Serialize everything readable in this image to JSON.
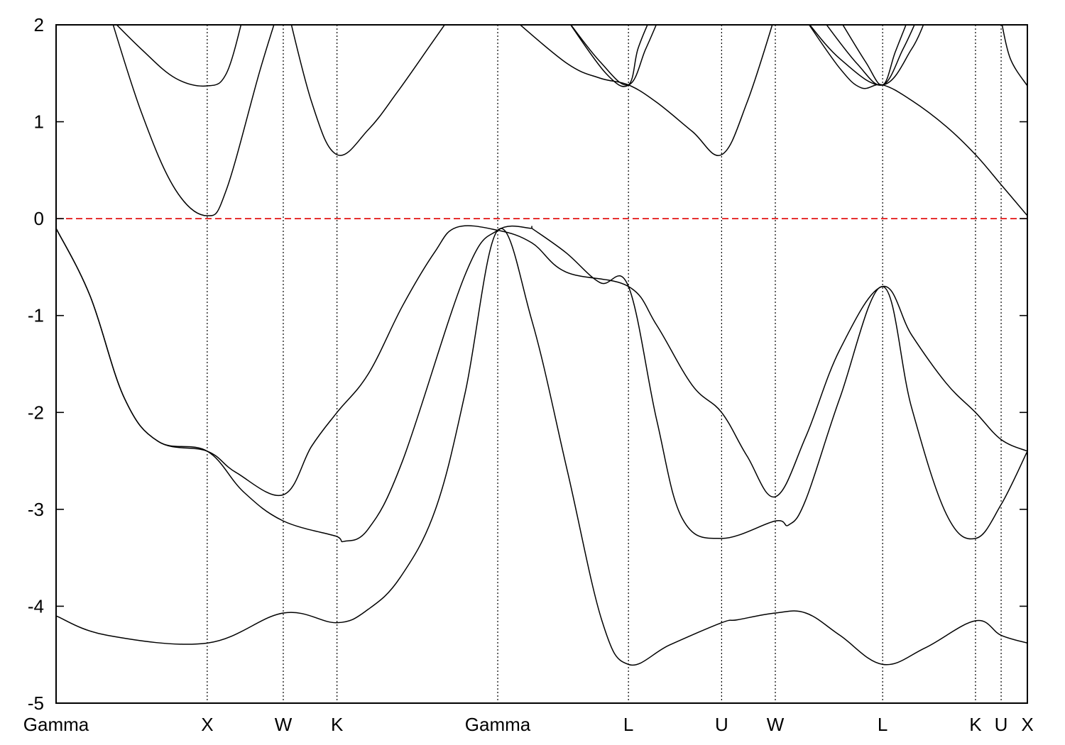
{
  "chart_data": {
    "type": "line",
    "title": "",
    "xlabel": "",
    "ylabel": "",
    "ylim": [
      -5,
      2
    ],
    "xlim": [
      0,
      1
    ],
    "grid": false,
    "y_ticks": [
      {
        "value": 2,
        "label": "2"
      },
      {
        "value": 1,
        "label": "1"
      },
      {
        "value": 0,
        "label": "0"
      },
      {
        "value": -1,
        "label": "-1"
      },
      {
        "value": -2,
        "label": "-2"
      },
      {
        "value": -3,
        "label": "-3"
      },
      {
        "value": -4,
        "label": "-4"
      },
      {
        "value": -5,
        "label": "-5"
      }
    ],
    "k_points": [
      {
        "label": "Gamma",
        "x": 0.0
      },
      {
        "label": "X",
        "x": 0.1556
      },
      {
        "label": "W",
        "x": 0.2339
      },
      {
        "label": "K",
        "x": 0.2892
      },
      {
        "label": "Gamma",
        "x": 0.4547
      },
      {
        "label": "L",
        "x": 0.5893
      },
      {
        "label": "U",
        "x": 0.6852
      },
      {
        "label": "W",
        "x": 0.7405
      },
      {
        "label": "L",
        "x": 0.851
      },
      {
        "label": "K",
        "x": 0.9466
      },
      {
        "label": "U",
        "x": 0.973
      },
      {
        "label": "X",
        "x": 1.0
      }
    ],
    "reference_line": {
      "y": 0,
      "color": "#e00000",
      "style": "dashed"
    },
    "series": [
      {
        "points": [
          [
            0.0,
            -4.1
          ],
          [
            0.0526,
            -4.3
          ],
          [
            0.1556,
            -4.38
          ],
          [
            0.2339,
            -4.07
          ],
          [
            0.2892,
            -4.17
          ],
          [
            0.3216,
            -4.03
          ],
          [
            0.3545,
            -3.7
          ],
          [
            0.3906,
            -3.0
          ],
          [
            0.4211,
            -1.8
          ],
          [
            0.4547,
            -0.12
          ],
          [
            0.4898,
            -1.05
          ],
          [
            0.5263,
            -2.6
          ],
          [
            0.562,
            -4.15
          ],
          [
            0.5893,
            -4.6
          ],
          [
            0.6316,
            -4.4
          ],
          [
            0.6852,
            -4.17
          ],
          [
            0.7017,
            -4.14
          ],
          [
            0.7405,
            -4.07
          ],
          [
            0.7719,
            -4.07
          ],
          [
            0.807,
            -4.3
          ],
          [
            0.851,
            -4.6
          ],
          [
            0.8947,
            -4.43
          ],
          [
            0.9466,
            -4.15
          ],
          [
            0.973,
            -4.3
          ],
          [
            1.0,
            -4.38
          ]
        ]
      },
      {
        "points": [
          [
            0.0,
            -0.1
          ],
          [
            0.0351,
            -0.8
          ],
          [
            0.0702,
            -1.85
          ],
          [
            0.1053,
            -2.3
          ],
          [
            0.1556,
            -2.4
          ],
          [
            0.193,
            -2.82
          ],
          [
            0.2339,
            -3.12
          ],
          [
            0.2892,
            -3.28
          ],
          [
            0.2968,
            -3.33
          ],
          [
            0.3216,
            -3.2
          ],
          [
            0.3567,
            -2.5
          ],
          [
            0.4211,
            -0.58
          ],
          [
            0.4547,
            -0.12
          ],
          [
            0.4898,
            -0.1
          ],
          [
            0.4898,
            -0.1
          ],
          [
            0.5248,
            -0.35
          ],
          [
            0.56,
            -0.66
          ],
          [
            0.5893,
            -0.7
          ],
          [
            0.6184,
            -2.08
          ],
          [
            0.645,
            -3.1
          ],
          [
            0.6852,
            -3.3
          ],
          [
            0.7405,
            -3.12
          ],
          [
            0.7544,
            -3.16
          ],
          [
            0.7719,
            -2.9
          ],
          [
            0.807,
            -1.85
          ],
          [
            0.851,
            -0.7
          ],
          [
            0.8808,
            -1.95
          ],
          [
            0.9166,
            -3.05
          ],
          [
            0.9466,
            -3.3
          ],
          [
            0.973,
            -2.95
          ],
          [
            1.0,
            -2.4
          ]
        ]
      },
      {
        "points": [
          [
            0.0,
            -0.1
          ],
          [
            0.0351,
            -0.8
          ],
          [
            0.0702,
            -1.85
          ],
          [
            0.1053,
            -2.3
          ],
          [
            0.1556,
            -2.4
          ],
          [
            0.1853,
            -2.62
          ],
          [
            0.2339,
            -2.85
          ],
          [
            0.263,
            -2.35
          ],
          [
            0.2892,
            -2.0
          ],
          [
            0.3216,
            -1.6
          ],
          [
            0.3567,
            -0.9
          ],
          [
            0.3895,
            -0.35
          ],
          [
            0.4123,
            -0.09
          ],
          [
            0.4547,
            -0.12
          ],
          [
            0.4898,
            -0.25
          ],
          [
            0.5248,
            -0.55
          ],
          [
            0.5893,
            -0.7
          ],
          [
            0.6184,
            -1.1
          ],
          [
            0.655,
            -1.72
          ],
          [
            0.6852,
            -2.0
          ],
          [
            0.7114,
            -2.45
          ],
          [
            0.7405,
            -2.87
          ],
          [
            0.7719,
            -2.25
          ],
          [
            0.807,
            -1.35
          ],
          [
            0.851,
            -0.7
          ],
          [
            0.8808,
            -1.2
          ],
          [
            0.9166,
            -1.7
          ],
          [
            0.9466,
            -2.0
          ],
          [
            0.973,
            -2.28
          ],
          [
            1.0,
            -2.4
          ]
        ]
      },
      {
        "points": [
          [
            0.0526,
            2.2
          ],
          [
            0.0877,
            1.1
          ],
          [
            0.1228,
            0.3
          ],
          [
            0.1556,
            0.03
          ],
          [
            0.1754,
            0.3
          ],
          [
            0.2105,
            1.55
          ],
          [
            0.2339,
            2.3
          ]
        ]
      },
      {
        "points": [
          [
            0.0526,
            2.1
          ],
          [
            0.0877,
            1.75
          ],
          [
            0.1228,
            1.45
          ],
          [
            0.1556,
            1.37
          ],
          [
            0.1754,
            1.5
          ],
          [
            0.193,
            2.1
          ]
        ]
      },
      {
        "points": [
          [
            0.2339,
            2.35
          ],
          [
            0.2632,
            1.2
          ],
          [
            0.2892,
            0.66
          ],
          [
            0.3216,
            0.92
          ],
          [
            0.3509,
            1.3
          ],
          [
            0.386,
            1.8
          ],
          [
            0.4035,
            2.05
          ]
        ]
      },
      {
        "points": [
          [
            0.472,
            2.05
          ],
          [
            0.5263,
            1.6
          ],
          [
            0.56,
            1.45
          ],
          [
            0.5893,
            1.38
          ],
          [
            0.6184,
            1.2
          ],
          [
            0.655,
            0.9
          ],
          [
            0.6852,
            0.66
          ],
          [
            0.7114,
            1.2
          ],
          [
            0.7405,
            2.1
          ]
        ]
      },
      {
        "points": [
          [
            0.5263,
            2.05
          ],
          [
            0.56,
            1.62
          ],
          [
            0.5893,
            1.38
          ],
          [
            0.607,
            1.75
          ],
          [
            0.62,
            2.05
          ]
        ]
      },
      {
        "points": [
          [
            0.5263,
            2.05
          ],
          [
            0.566,
            1.5
          ],
          [
            0.5893,
            1.38
          ],
          [
            0.599,
            1.75
          ],
          [
            0.611,
            2.05
          ]
        ]
      },
      {
        "points": [
          [
            0.7719,
            2.05
          ],
          [
            0.807,
            1.55
          ],
          [
            0.829,
            1.35
          ],
          [
            0.851,
            1.38
          ],
          [
            0.8808,
            1.22
          ],
          [
            0.9166,
            0.95
          ],
          [
            0.9466,
            0.66
          ],
          [
            0.973,
            0.35
          ],
          [
            1.0,
            0.03
          ]
        ]
      },
      {
        "points": [
          [
            0.7719,
            2.05
          ],
          [
            0.807,
            1.65
          ],
          [
            0.851,
            1.38
          ],
          [
            0.8808,
            1.75
          ],
          [
            0.895,
            2.05
          ]
        ]
      },
      {
        "points": [
          [
            0.7895,
            2.05
          ],
          [
            0.8246,
            1.6
          ],
          [
            0.851,
            1.38
          ],
          [
            0.872,
            1.75
          ],
          [
            0.886,
            2.05
          ]
        ]
      },
      {
        "points": [
          [
            0.807,
            2.05
          ],
          [
            0.8333,
            1.62
          ],
          [
            0.851,
            1.38
          ],
          [
            0.864,
            1.72
          ],
          [
            0.877,
            2.05
          ]
        ]
      },
      {
        "points": [
          [
            0.973,
            2.05
          ],
          [
            0.9825,
            1.65
          ],
          [
            1.0,
            1.37
          ]
        ]
      }
    ]
  }
}
